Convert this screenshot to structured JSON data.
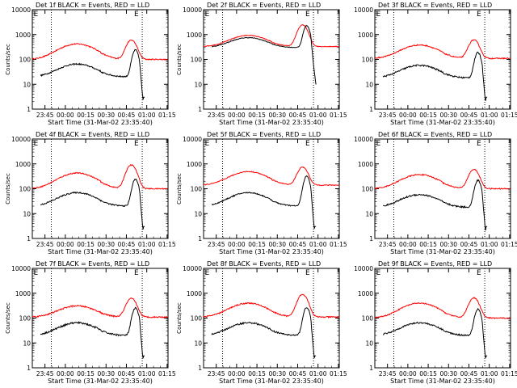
{
  "colors": {
    "events": "#000000",
    "lld": "#ff0000",
    "axes": "#000000",
    "background": "#ffffff"
  },
  "chart_data": {
    "type": "line",
    "common": {
      "xlabel": "Start Time (31-Mar-02 23:35:40)",
      "ylabel": "Counts/sec",
      "x_ticks": [
        "23:45",
        "00:00",
        "00:15",
        "00:30",
        "00:45",
        "01:00",
        "01:15"
      ],
      "x_tick_minutes": [
        9.33,
        24.33,
        39.33,
        54.33,
        69.33,
        84.33,
        99.33
      ],
      "xlim_minutes": [
        0,
        100
      ],
      "y_scale": "log",
      "ylim": [
        1,
        10000
      ],
      "y_ticks": [
        "1",
        "10",
        "100",
        "1000",
        "10000"
      ],
      "y_tick_values": [
        1,
        10,
        100,
        1000,
        10000
      ],
      "vlines_minutes": [
        14,
        81
      ],
      "markers": [
        "E",
        "E"
      ],
      "markers_minutes": [
        1,
        75
      ]
    },
    "panels": [
      {
        "title": "Det 1f BLACK = Events, RED = LLD",
        "events": {
          "base": 20,
          "hump": 45,
          "peak": 220,
          "noise": 0.06
        },
        "lld": {
          "base": 100,
          "hump": 320,
          "peak": 500,
          "noise": 0.05
        },
        "ylabel_visible": true
      },
      {
        "title": "Det 2f BLACK = Events, RED = LLD",
        "events": {
          "base": 300,
          "hump": 450,
          "peak": 2000,
          "noise": 0.03
        },
        "lld": {
          "base": 330,
          "hump": 600,
          "peak": 2100,
          "noise": 0.03
        },
        "ylabel_visible": true
      },
      {
        "title": "Det 3f BLACK = Events, RED = LLD",
        "events": {
          "base": 18,
          "hump": 40,
          "peak": 170,
          "noise": 0.07
        },
        "lld": {
          "base": 110,
          "hump": 270,
          "peak": 500,
          "noise": 0.05
        },
        "ylabel_visible": false
      },
      {
        "title": "Det 4f BLACK = Events, RED = LLD",
        "events": {
          "base": 20,
          "hump": 50,
          "peak": 220,
          "noise": 0.06
        },
        "lld": {
          "base": 100,
          "hump": 330,
          "peak": 800,
          "noise": 0.05
        },
        "ylabel_visible": true
      },
      {
        "title": "Det 5f BLACK = Events, RED = LLD",
        "events": {
          "base": 20,
          "hump": 50,
          "peak": 300,
          "noise": 0.05
        },
        "lld": {
          "base": 140,
          "hump": 350,
          "peak": 600,
          "noise": 0.04
        },
        "ylabel_visible": true
      },
      {
        "title": "Det 6f BLACK = Events, RED = LLD",
        "events": {
          "base": 18,
          "hump": 40,
          "peak": 200,
          "noise": 0.07
        },
        "lld": {
          "base": 100,
          "hump": 270,
          "peak": 500,
          "noise": 0.05
        },
        "ylabel_visible": false
      },
      {
        "title": "Det 7f BLACK = Events, RED = LLD",
        "events": {
          "base": 20,
          "hump": 45,
          "peak": 230,
          "noise": 0.08
        },
        "lld": {
          "base": 110,
          "hump": 200,
          "peak": 500,
          "noise": 0.06
        },
        "ylabel_visible": true
      },
      {
        "title": "Det 8f BLACK = Events, RED = LLD",
        "events": {
          "base": 20,
          "hump": 45,
          "peak": 250,
          "noise": 0.07
        },
        "lld": {
          "base": 110,
          "hump": 290,
          "peak": 800,
          "noise": 0.06
        },
        "ylabel_visible": true
      },
      {
        "title": "Det 9f BLACK = Events, RED = LLD",
        "events": {
          "base": 20,
          "hump": 45,
          "peak": 210,
          "noise": 0.07
        },
        "lld": {
          "base": 100,
          "hump": 300,
          "peak": 550,
          "noise": 0.05
        },
        "ylabel_visible": false
      }
    ]
  }
}
